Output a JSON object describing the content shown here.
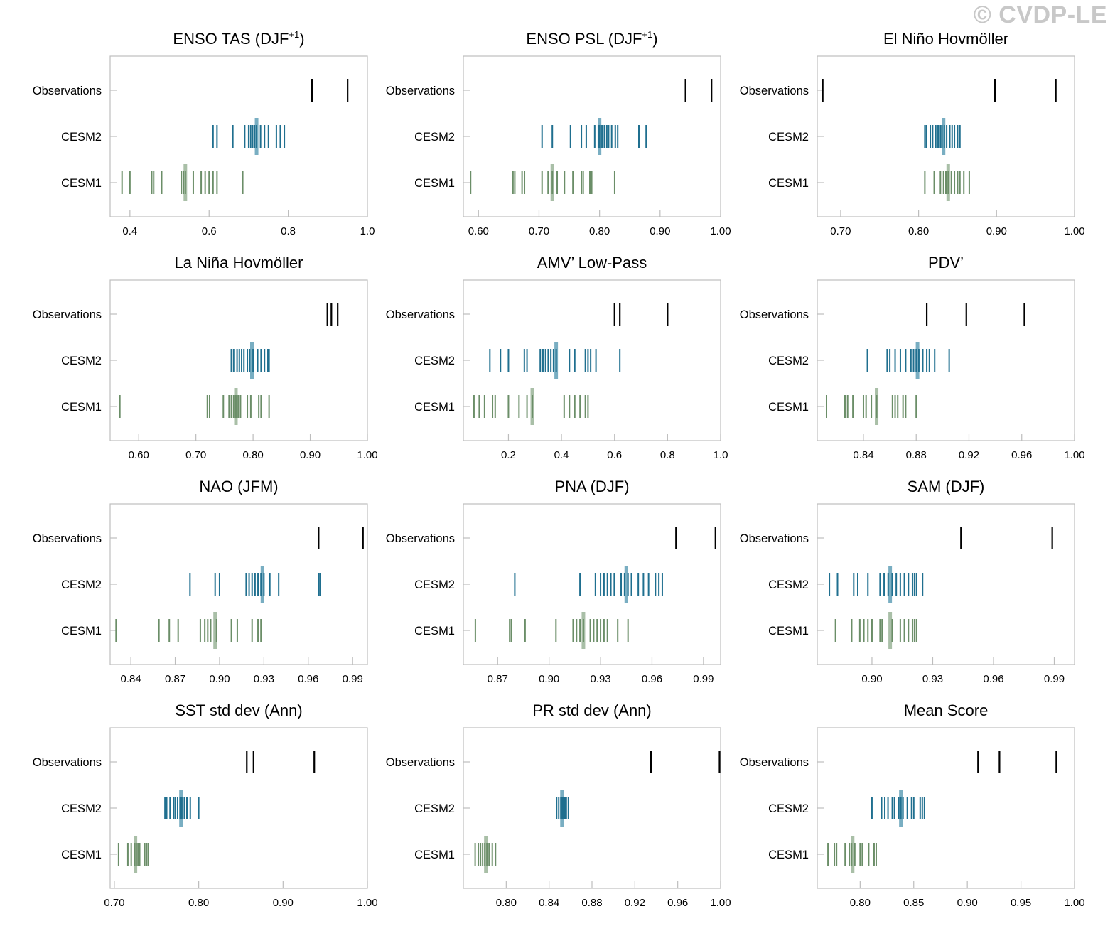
{
  "watermark": "© CVDP-LE",
  "colors": {
    "observations": "#000000",
    "cesm2": "#1f6f8f",
    "cesm2_mean": "#79aec2",
    "cesm1": "#6b8e68",
    "cesm1_mean": "#a9bfa7",
    "frame": "#bdbdbd"
  },
  "row_labels": [
    "Observations",
    "CESM2",
    "CESM1"
  ],
  "chart_data": [
    {
      "type": "strip",
      "title": "ENSO TAS (DJF",
      "title_sup": "+1",
      "title_end": ")",
      "xlim": [
        0.35,
        1.0
      ],
      "xticks": [
        "0.4",
        "0.6",
        "0.8",
        "1.0"
      ],
      "observations": [
        0.86,
        0.86,
        0.95
      ],
      "cesm2": [
        0.61,
        0.62,
        0.66,
        0.69,
        0.7,
        0.705,
        0.71,
        0.715,
        0.72,
        0.73,
        0.74,
        0.75,
        0.77,
        0.78,
        0.79,
        0.79
      ],
      "cesm2_mean": 0.72,
      "cesm1": [
        0.38,
        0.4,
        0.455,
        0.46,
        0.48,
        0.48,
        0.53,
        0.535,
        0.54,
        0.56,
        0.58,
        0.59,
        0.6,
        0.61,
        0.62,
        0.685
      ],
      "cesm1_mean": 0.54
    },
    {
      "type": "strip",
      "title": "ENSO PSL (DJF",
      "title_sup": "+1",
      "title_end": ")",
      "xlim": [
        0.575,
        1.0
      ],
      "xticks": [
        "0.60",
        "0.70",
        "0.80",
        "0.90",
        "1.00"
      ],
      "observations": [
        0.942,
        0.985
      ],
      "cesm2": [
        0.705,
        0.722,
        0.752,
        0.77,
        0.778,
        0.792,
        0.798,
        0.8,
        0.804,
        0.808,
        0.812,
        0.815,
        0.82,
        0.826,
        0.83,
        0.865,
        0.877
      ],
      "cesm2_mean": 0.8,
      "cesm1": [
        0.587,
        0.657,
        0.66,
        0.672,
        0.676,
        0.705,
        0.715,
        0.722,
        0.73,
        0.742,
        0.756,
        0.77,
        0.773,
        0.784,
        0.787,
        0.825
      ],
      "cesm1_mean": 0.722
    },
    {
      "type": "strip",
      "title": "El Niño Hovmöller",
      "xlim": [
        0.67,
        1.0
      ],
      "xticks": [
        "0.70",
        "0.80",
        "0.90",
        "1.00"
      ],
      "observations": [
        0.677,
        0.898,
        0.976
      ],
      "cesm2": [
        0.808,
        0.81,
        0.815,
        0.818,
        0.822,
        0.825,
        0.828,
        0.83,
        0.833,
        0.836,
        0.84,
        0.843,
        0.846,
        0.85,
        0.853
      ],
      "cesm2_mean": 0.832,
      "cesm1": [
        0.808,
        0.82,
        0.828,
        0.832,
        0.835,
        0.838,
        0.842,
        0.846,
        0.85,
        0.853,
        0.858,
        0.865
      ],
      "cesm1_mean": 0.838
    },
    {
      "type": "strip",
      "title": "La Niña Hovmöller",
      "xlim": [
        0.55,
        1.0
      ],
      "xticks": [
        "0.60",
        "0.70",
        "0.80",
        "0.90",
        "1.00"
      ],
      "observations": [
        0.93,
        0.937,
        0.948
      ],
      "cesm2": [
        0.762,
        0.766,
        0.772,
        0.776,
        0.78,
        0.784,
        0.79,
        0.794,
        0.8,
        0.808,
        0.814,
        0.82,
        0.826,
        0.828
      ],
      "cesm2_mean": 0.798,
      "cesm1": [
        0.567,
        0.72,
        0.724,
        0.748,
        0.758,
        0.762,
        0.766,
        0.77,
        0.774,
        0.778,
        0.79,
        0.796,
        0.81,
        0.814,
        0.828
      ],
      "cesm1_mean": 0.77
    },
    {
      "type": "strip",
      "title": "AMV’ Low-Pass",
      "xlim": [
        0.03,
        1.0
      ],
      "xticks": [
        "0.2",
        "0.4",
        "0.6",
        "0.8",
        "1.0"
      ],
      "observations": [
        0.6,
        0.62,
        0.8
      ],
      "cesm2": [
        0.13,
        0.17,
        0.2,
        0.26,
        0.27,
        0.32,
        0.33,
        0.34,
        0.35,
        0.36,
        0.37,
        0.38,
        0.43,
        0.45,
        0.49,
        0.5,
        0.51,
        0.53,
        0.62
      ],
      "cesm2_mean": 0.38,
      "cesm1": [
        0.07,
        0.09,
        0.11,
        0.14,
        0.15,
        0.2,
        0.24,
        0.27,
        0.29,
        0.41,
        0.43,
        0.45,
        0.47,
        0.49,
        0.5
      ],
      "cesm1_mean": 0.29
    },
    {
      "type": "strip",
      "title": "PDV’",
      "xlim": [
        0.805,
        1.0
      ],
      "xticks": [
        "0.84",
        "0.88",
        "0.92",
        "0.96",
        "1.00"
      ],
      "observations": [
        0.888,
        0.918,
        0.962
      ],
      "cesm2": [
        0.843,
        0.858,
        0.86,
        0.864,
        0.868,
        0.872,
        0.876,
        0.878,
        0.88,
        0.882,
        0.885,
        0.888,
        0.89,
        0.894,
        0.905
      ],
      "cesm2_mean": 0.881,
      "cesm1": [
        0.812,
        0.826,
        0.828,
        0.832,
        0.84,
        0.842,
        0.846,
        0.85,
        0.862,
        0.864,
        0.866,
        0.87,
        0.872,
        0.88
      ],
      "cesm1_mean": 0.85
    },
    {
      "type": "strip",
      "title": "NAO (JFM)",
      "xlim": [
        0.826,
        1.0
      ],
      "xticks": [
        "0.84",
        "0.87",
        "0.90",
        "0.93",
        "0.96",
        "0.99"
      ],
      "observations": [
        0.967,
        0.997
      ],
      "cesm2": [
        0.88,
        0.897,
        0.9,
        0.918,
        0.92,
        0.922,
        0.924,
        0.926,
        0.928,
        0.93,
        0.934,
        0.94,
        0.967,
        0.968
      ],
      "cesm2_mean": 0.929,
      "cesm1": [
        0.83,
        0.859,
        0.866,
        0.872,
        0.887,
        0.89,
        0.892,
        0.894,
        0.898,
        0.908,
        0.912,
        0.922,
        0.926,
        0.928
      ],
      "cesm1_mean": 0.897
    },
    {
      "type": "strip",
      "title": "PNA (DJF)",
      "xlim": [
        0.85,
        1.0
      ],
      "xticks": [
        "0.87",
        "0.90",
        "0.93",
        "0.96",
        "0.99"
      ],
      "observations": [
        0.974,
        0.997
      ],
      "cesm2": [
        0.88,
        0.918,
        0.927,
        0.93,
        0.932,
        0.934,
        0.936,
        0.938,
        0.942,
        0.944,
        0.946,
        0.948,
        0.952,
        0.955,
        0.958,
        0.962,
        0.964,
        0.966
      ],
      "cesm2_mean": 0.945,
      "cesm1": [
        0.857,
        0.877,
        0.878,
        0.886,
        0.904,
        0.914,
        0.916,
        0.918,
        0.92,
        0.924,
        0.926,
        0.928,
        0.93,
        0.932,
        0.934,
        0.94,
        0.946
      ],
      "cesm1_mean": 0.92
    },
    {
      "type": "strip",
      "title": "SAM (DJF)",
      "xlim": [
        0.873,
        1.0
      ],
      "xticks": [
        "0.90",
        "0.93",
        "0.96",
        "0.99"
      ],
      "observations": [
        0.944,
        0.944,
        0.989
      ],
      "cesm2": [
        0.879,
        0.883,
        0.891,
        0.893,
        0.898,
        0.904,
        0.906,
        0.908,
        0.91,
        0.912,
        0.914,
        0.916,
        0.918,
        0.92,
        0.921,
        0.922,
        0.925
      ],
      "cesm2_mean": 0.909,
      "cesm1": [
        0.882,
        0.89,
        0.894,
        0.896,
        0.898,
        0.9,
        0.904,
        0.905,
        0.91,
        0.914,
        0.916,
        0.918,
        0.92,
        0.921,
        0.922
      ],
      "cesm1_mean": 0.909
    },
    {
      "type": "strip",
      "title": "SST std dev (Ann)",
      "xlim": [
        0.695,
        1.0
      ],
      "xticks": [
        "0.70",
        "0.80",
        "0.90",
        "1.00"
      ],
      "observations": [
        0.857,
        0.865,
        0.937
      ],
      "cesm2": [
        0.76,
        0.762,
        0.766,
        0.77,
        0.772,
        0.775,
        0.778,
        0.78,
        0.783,
        0.786,
        0.79,
        0.8
      ],
      "cesm2_mean": 0.779,
      "cesm1": [
        0.705,
        0.716,
        0.72,
        0.724,
        0.726,
        0.728,
        0.73,
        0.736,
        0.738,
        0.74
      ],
      "cesm1_mean": 0.725
    },
    {
      "type": "strip",
      "title": "PR std dev (Ann)",
      "xlim": [
        0.76,
        1.0
      ],
      "xticks": [
        "0.80",
        "0.84",
        "0.88",
        "0.92",
        "0.96",
        "1.00"
      ],
      "observations": [
        0.935,
        0.999
      ],
      "cesm2": [
        0.847,
        0.849,
        0.851,
        0.852,
        0.853,
        0.854,
        0.855,
        0.856,
        0.858
      ],
      "cesm2_mean": 0.852,
      "cesm1": [
        0.771,
        0.774,
        0.776,
        0.778,
        0.78,
        0.782,
        0.784,
        0.787,
        0.79
      ],
      "cesm1_mean": 0.781
    },
    {
      "type": "strip",
      "title": "Mean Score",
      "xlim": [
        0.76,
        1.0
      ],
      "xticks": [
        "0.80",
        "0.85",
        "0.90",
        "0.95",
        "1.00"
      ],
      "observations": [
        0.91,
        0.93,
        0.983
      ],
      "cesm2": [
        0.811,
        0.82,
        0.823,
        0.826,
        0.83,
        0.832,
        0.836,
        0.838,
        0.84,
        0.844,
        0.848,
        0.85,
        0.856,
        0.858,
        0.86
      ],
      "cesm2_mean": 0.838,
      "cesm1": [
        0.77,
        0.776,
        0.778,
        0.786,
        0.79,
        0.792,
        0.795,
        0.8,
        0.802,
        0.808,
        0.813,
        0.815
      ],
      "cesm1_mean": 0.793
    }
  ]
}
